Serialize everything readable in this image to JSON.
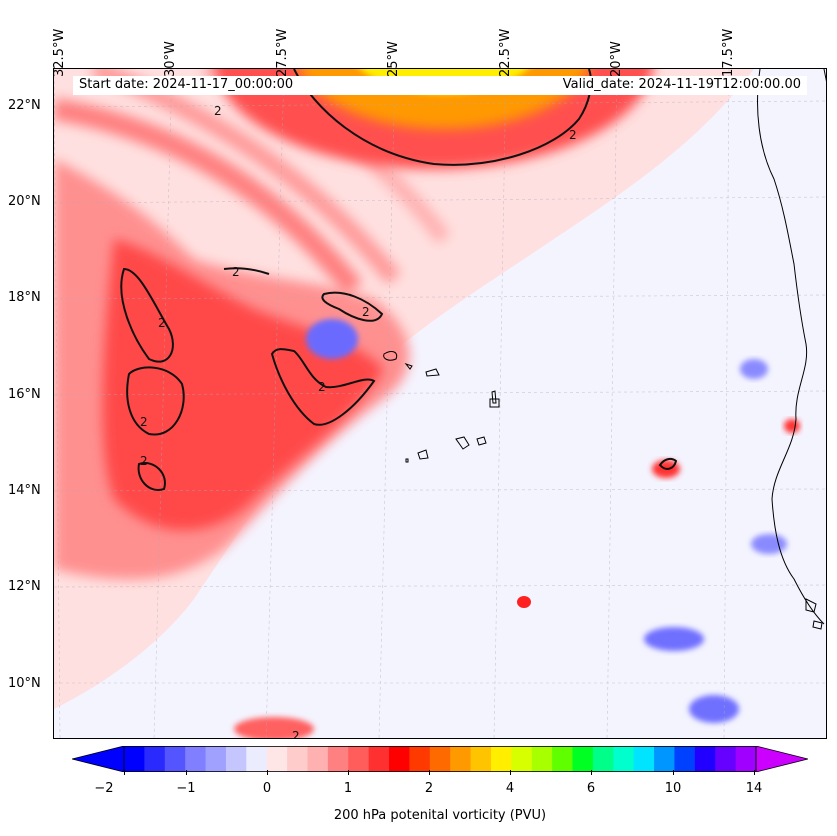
{
  "map": {
    "lon_labels": [
      "32.5°W",
      "30°W",
      "27.5°W",
      "25°W",
      "22.5°W",
      "20°W",
      "17.5°W"
    ],
    "lat_labels": [
      "22°N",
      "20°N",
      "18°N",
      "16°N",
      "14°N",
      "12°N",
      "10°N"
    ],
    "start_date": "Start date: 2024-11-17_00:00:00",
    "valid_date": "Valid_date: 2024-11-19T12:00:00.00",
    "contour_label": "2"
  },
  "colorbar": {
    "ticks": [
      "−2",
      "−1",
      "0",
      "1",
      "2",
      "4",
      "6",
      "10",
      "14"
    ],
    "label": "200 hPa potenital vorticity (PVU)",
    "colors": [
      "#0000ff",
      "#2a2aff",
      "#5555ff",
      "#7f7fff",
      "#a0a0ff",
      "#c6c6ff",
      "#ececff",
      "#ffe6e6",
      "#ffcccc",
      "#ffb0b0",
      "#ff8080",
      "#ff5c5c",
      "#ff3030",
      "#ff0000",
      "#ff3a00",
      "#ff6a00",
      "#ff9900",
      "#ffc400",
      "#ffee00",
      "#d8ff00",
      "#a8ff00",
      "#60ff00",
      "#00ff22",
      "#00ff88",
      "#00ffcc",
      "#00e4ff",
      "#0096ff",
      "#0040ff",
      "#2200ff",
      "#6600ff",
      "#a000ff"
    ],
    "extend_low": "#0000ff",
    "extend_high": "#cc00ff"
  }
}
